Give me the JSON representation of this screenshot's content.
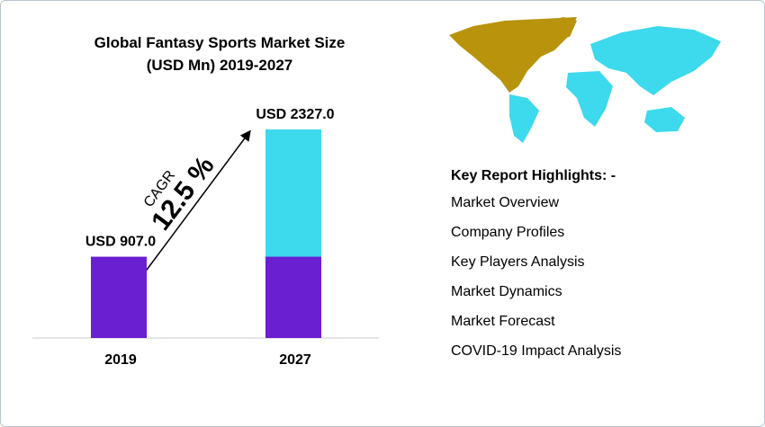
{
  "chart_data": {
    "type": "bar",
    "title": "Global Fantasy Sports Market Size (USD Mn) 2019-2027",
    "categories": [
      "2019",
      "2027"
    ],
    "values": [
      907.0,
      2327.0
    ],
    "value_labels": [
      "USD 907.0",
      "USD 2327.0"
    ],
    "base_color": "#6a1fd1",
    "growth_color": "#3dd9ec",
    "annotation_label": "CAGR",
    "annotation_value": "12.5 %"
  },
  "highlights": {
    "title": "Key Report Highlights: -",
    "items": [
      "Market Overview",
      "Company Profiles",
      "Key Players Analysis",
      "Market Dynamics",
      "Market Forecast",
      "COVID-19 Impact Analysis"
    ]
  }
}
